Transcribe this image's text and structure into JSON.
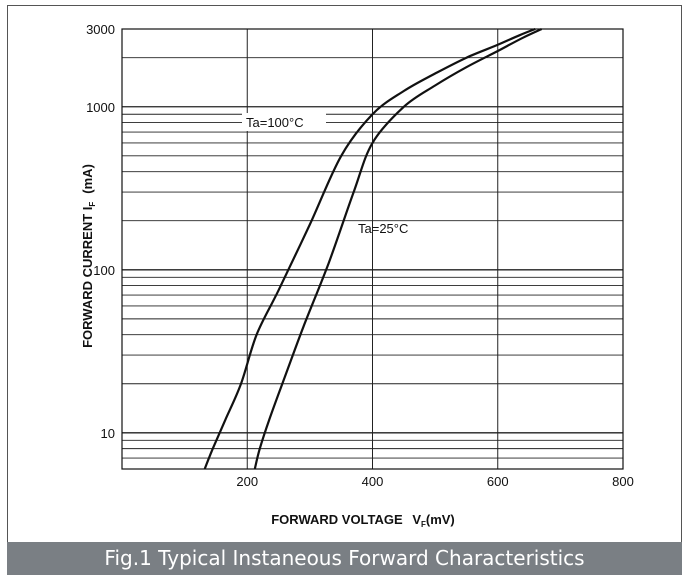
{
  "chart_data": {
    "type": "line",
    "xlabel": "FORWARD VOLTAGE",
    "xlabel_symbol": "V",
    "xlabel_sub": "F",
    "xlabel_unit": "(mV)",
    "ylabel": "FORWARD CURRENT I",
    "ylabel_sub": "F",
    "ylabel_unit": "(mA)",
    "xlim": [
      0,
      800
    ],
    "ylim": [
      6,
      3000
    ],
    "y_scale": "log",
    "grid": true,
    "x_ticks": [
      "200",
      "400",
      "600",
      "800"
    ],
    "y_ticks": [
      "10",
      "100",
      "1000",
      "3000"
    ],
    "series": [
      {
        "name": "Ta=100°C",
        "x": [
          132,
          145,
          165,
          190,
          215,
          250,
          300,
          350,
          400,
          450,
          500,
          550,
          600,
          635,
          660
        ],
        "y": [
          6,
          8,
          12,
          20,
          40,
          75,
          190,
          500,
          900,
          1250,
          1600,
          2000,
          2400,
          2750,
          3000
        ]
      },
      {
        "name": "Ta=25°C",
        "x": [
          212,
          220,
          235,
          260,
          290,
          330,
          370,
          400,
          450,
          500,
          550,
          600,
          640,
          670
        ],
        "y": [
          6,
          8,
          12,
          22,
          45,
          110,
          300,
          600,
          1000,
          1350,
          1750,
          2200,
          2650,
          3000
        ]
      }
    ]
  },
  "caption": "Fig.1 Typical Instaneous Forward Characteristics"
}
